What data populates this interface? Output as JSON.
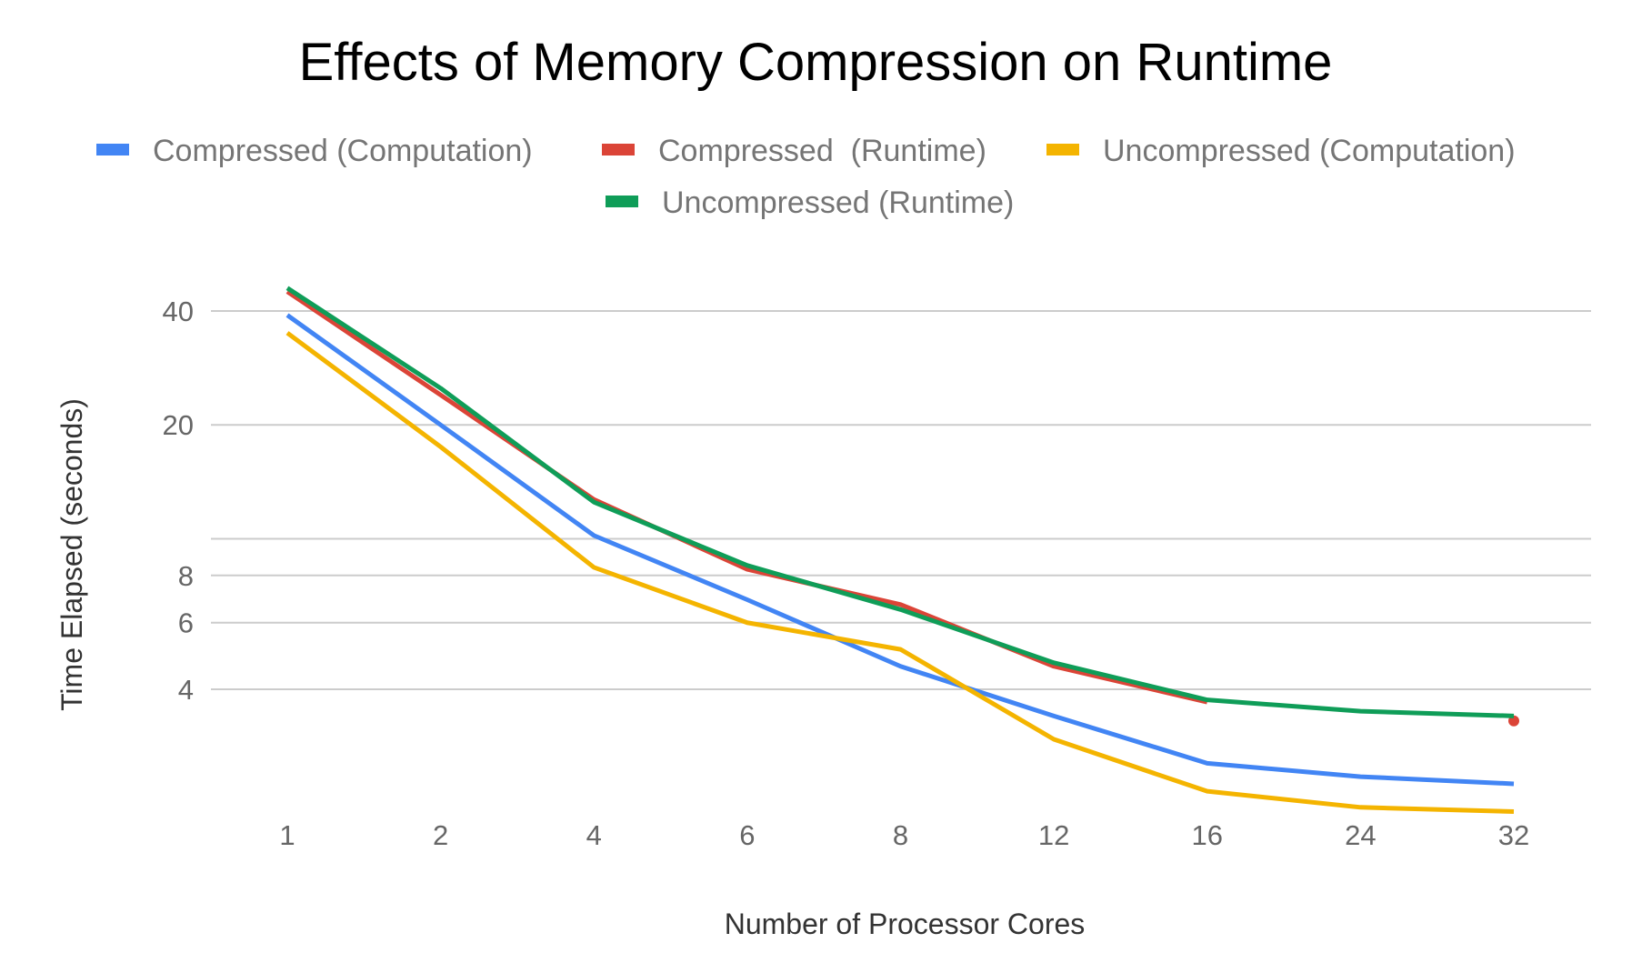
{
  "chart_data": {
    "type": "line",
    "title": "Effects of Memory Compression on Runtime",
    "xlabel": "Number of Processor Cores",
    "ylabel": "Time Elapsed (seconds)",
    "categories": [
      "1",
      "2",
      "4",
      "6",
      "8",
      "12",
      "16",
      "24",
      "32"
    ],
    "y_scale": "log",
    "y_ticks": [
      {
        "value": 4,
        "label": "4"
      },
      {
        "value": 6,
        "label": "6"
      },
      {
        "value": 8,
        "label": "8"
      },
      {
        "value": 10,
        "label": ""
      },
      {
        "value": 20,
        "label": "20"
      },
      {
        "value": 40,
        "label": "40"
      }
    ],
    "ylim": [
      1.7,
      55
    ],
    "grid": true,
    "legend_position": "top",
    "series": [
      {
        "name": "Compressed (Computation)",
        "color": "#4285F4",
        "values": [
          39,
          20,
          10.2,
          6.9,
          4.6,
          3.4,
          2.55,
          2.35,
          2.25
        ]
      },
      {
        "name": "Compressed  (Runtime)",
        "color": "#DB4437",
        "values": [
          45,
          24,
          12.7,
          8.3,
          6.7,
          4.6,
          3.7,
          null,
          3.3
        ]
      },
      {
        "name": "Uncompressed (Computation)",
        "color": "#F4B400",
        "values": [
          35,
          17.5,
          8.4,
          6.0,
          5.1,
          2.95,
          2.15,
          1.95,
          1.9
        ]
      },
      {
        "name": "Uncompressed (Runtime)",
        "color": "#0F9D58",
        "values": [
          46,
          25,
          12.5,
          8.5,
          6.5,
          4.7,
          3.75,
          3.5,
          3.4
        ]
      }
    ]
  }
}
